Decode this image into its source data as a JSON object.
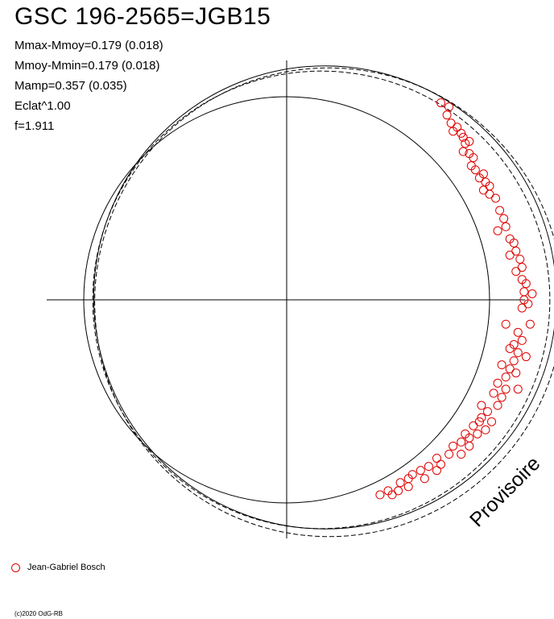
{
  "header": {
    "title": "GSC 196-2565=JGB15"
  },
  "stats": [
    "Mmax-Mmoy=0.179 (0.018)",
    "Mmoy-Mmin=0.179 (0.018)",
    "Mamp=0.357 (0.035)",
    "Eclat^1.00",
    "f=1.911"
  ],
  "stamp": "Provisoire",
  "legend": {
    "label": "Jean-Gabriel Bosch",
    "marker_color": "#e00000"
  },
  "footer": {
    "copyright": "(c)2020 OdG-RB"
  },
  "chart_data": {
    "type": "scatter",
    "title": "GSC 196-2565=JGB15",
    "projection": "polar",
    "reference_circle_radius": 1.0,
    "fit_curves": [
      {
        "style": "solid",
        "amplitude": 0.357
      },
      {
        "style": "dashed",
        "amplitude": 0.322
      },
      {
        "style": "dashed",
        "amplitude": 0.392
      }
    ],
    "series": [
      {
        "name": "Jean-Gabriel Bosch",
        "marker": "open-circle",
        "color": "#e00000",
        "points": [
          [
            0.76,
            0.97
          ],
          [
            0.8,
            0.95
          ],
          [
            0.79,
            0.91
          ],
          [
            0.81,
            0.87
          ],
          [
            0.82,
            0.83
          ],
          [
            0.84,
            0.85
          ],
          [
            0.86,
            0.82
          ],
          [
            0.87,
            0.8
          ],
          [
            0.88,
            0.77
          ],
          [
            0.9,
            0.78
          ],
          [
            0.87,
            0.73
          ],
          [
            0.9,
            0.72
          ],
          [
            0.92,
            0.7
          ],
          [
            0.91,
            0.66
          ],
          [
            0.93,
            0.64
          ],
          [
            0.97,
            0.62
          ],
          [
            0.95,
            0.6
          ],
          [
            0.98,
            0.58
          ],
          [
            1.0,
            0.56
          ],
          [
            0.97,
            0.54
          ],
          [
            1.0,
            0.52
          ],
          [
            1.03,
            0.5
          ],
          [
            1.05,
            0.44
          ],
          [
            1.07,
            0.4
          ],
          [
            1.08,
            0.36
          ],
          [
            1.04,
            0.34
          ],
          [
            1.1,
            0.3
          ],
          [
            1.12,
            0.28
          ],
          [
            1.13,
            0.24
          ],
          [
            1.1,
            0.22
          ],
          [
            1.15,
            0.2
          ],
          [
            1.16,
            0.16
          ],
          [
            1.13,
            0.14
          ],
          [
            1.16,
            0.1
          ],
          [
            1.18,
            0.08
          ],
          [
            1.17,
            0.04
          ],
          [
            1.21,
            0.03
          ],
          [
            1.17,
            0.0
          ],
          [
            1.19,
            -0.02
          ],
          [
            1.16,
            -0.04
          ],
          [
            1.08,
            -0.12
          ],
          [
            1.2,
            -0.12
          ],
          [
            1.14,
            -0.16
          ],
          [
            1.16,
            -0.2
          ],
          [
            1.12,
            -0.22
          ],
          [
            1.1,
            -0.24
          ],
          [
            1.14,
            -0.26
          ],
          [
            1.18,
            -0.28
          ],
          [
            1.12,
            -0.3
          ],
          [
            1.06,
            -0.32
          ],
          [
            1.1,
            -0.34
          ],
          [
            1.13,
            -0.36
          ],
          [
            1.08,
            -0.38
          ],
          [
            1.04,
            -0.41
          ],
          [
            1.08,
            -0.44
          ],
          [
            1.14,
            -0.44
          ],
          [
            1.02,
            -0.46
          ],
          [
            1.06,
            -0.48
          ],
          [
            0.96,
            -0.52
          ],
          [
            1.04,
            -0.52
          ],
          [
            0.99,
            -0.55
          ],
          [
            0.96,
            -0.58
          ],
          [
            1.01,
            -0.6
          ],
          [
            0.95,
            -0.6
          ],
          [
            0.92,
            -0.62
          ],
          [
            0.98,
            -0.64
          ],
          [
            0.88,
            -0.66
          ],
          [
            0.94,
            -0.66
          ],
          [
            0.9,
            -0.68
          ],
          [
            0.86,
            -0.7
          ],
          [
            0.9,
            -0.72
          ],
          [
            0.82,
            -0.72
          ],
          [
            0.86,
            -0.76
          ],
          [
            0.8,
            -0.76
          ],
          [
            0.74,
            -0.78
          ],
          [
            0.76,
            -0.81
          ],
          [
            0.7,
            -0.82
          ],
          [
            0.74,
            -0.84
          ],
          [
            0.66,
            -0.84
          ],
          [
            0.62,
            -0.86
          ],
          [
            0.68,
            -0.88
          ],
          [
            0.6,
            -0.88
          ],
          [
            0.56,
            -0.9
          ],
          [
            0.6,
            -0.92
          ],
          [
            0.55,
            -0.94
          ],
          [
            0.5,
            -0.94
          ],
          [
            0.52,
            -0.96
          ],
          [
            0.46,
            -0.96
          ]
        ]
      }
    ],
    "grid": false,
    "legend_position": "bottom-left"
  }
}
